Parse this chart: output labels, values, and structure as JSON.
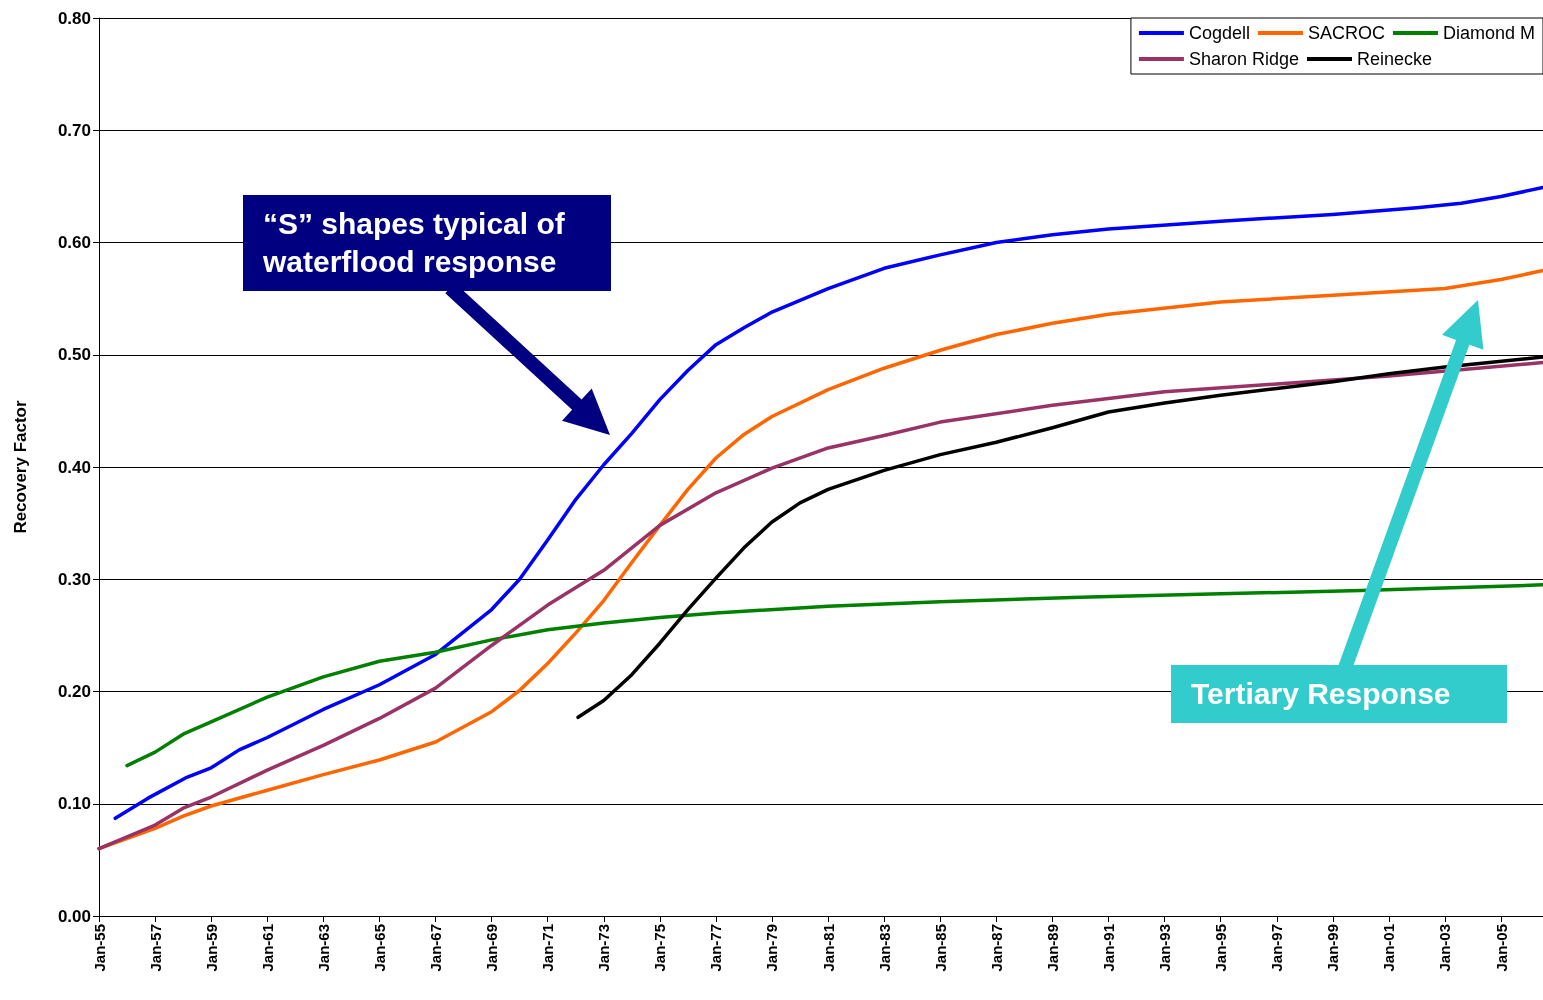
{
  "chart_data": {
    "type": "line",
    "ylabel": "Recovery Factor",
    "xlim": [
      "1955-01",
      "2006-07"
    ],
    "ylim": [
      0,
      0.8
    ],
    "xticks": [
      {
        "value": "1955-01",
        "label": "Jan-55"
      },
      {
        "value": "1957-01",
        "label": "Jan-57"
      },
      {
        "value": "1959-01",
        "label": "Jan-59"
      },
      {
        "value": "1961-01",
        "label": "Jan-61"
      },
      {
        "value": "1963-01",
        "label": "Jan-63"
      },
      {
        "value": "1965-01",
        "label": "Jan-65"
      },
      {
        "value": "1967-01",
        "label": "Jan-67"
      },
      {
        "value": "1969-01",
        "label": "Jan-69"
      },
      {
        "value": "1971-01",
        "label": "Jan-71"
      },
      {
        "value": "1973-01",
        "label": "Jan-73"
      },
      {
        "value": "1975-01",
        "label": "Jan-75"
      },
      {
        "value": "1977-01",
        "label": "Jan-77"
      },
      {
        "value": "1979-01",
        "label": "Jan-79"
      },
      {
        "value": "1981-01",
        "label": "Jan-81"
      },
      {
        "value": "1983-01",
        "label": "Jan-83"
      },
      {
        "value": "1985-01",
        "label": "Jan-85"
      },
      {
        "value": "1987-01",
        "label": "Jan-87"
      },
      {
        "value": "1989-01",
        "label": "Jan-89"
      },
      {
        "value": "1991-01",
        "label": "Jan-91"
      },
      {
        "value": "1993-01",
        "label": "Jan-93"
      },
      {
        "value": "1995-01",
        "label": "Jan-95"
      },
      {
        "value": "1997-01",
        "label": "Jan-97"
      },
      {
        "value": "1999-01",
        "label": "Jan-99"
      },
      {
        "value": "2001-01",
        "label": "Jan-01"
      },
      {
        "value": "2003-01",
        "label": "Jan-03"
      },
      {
        "value": "2005-01",
        "label": "Jan-05"
      }
    ],
    "yticks": [
      {
        "value": 0,
        "label": "0.00"
      },
      {
        "value": 0.1,
        "label": "0.10"
      },
      {
        "value": 0.2,
        "label": "0.20"
      },
      {
        "value": 0.3,
        "label": "0.30"
      },
      {
        "value": 0.4,
        "label": "0.40"
      },
      {
        "value": 0.5,
        "label": "0.50"
      },
      {
        "value": 0.6,
        "label": "0.60"
      },
      {
        "value": 0.7,
        "label": "0.70"
      },
      {
        "value": 0.8,
        "label": "0.80"
      }
    ],
    "grid": "y",
    "legend": "top right",
    "marker": "none",
    "line_style": "solid",
    "series": [
      {
        "name": "Cogdell",
        "color": "#0000ff",
        "x": [
          "1955-08",
          "1956-10",
          "1958-02",
          "1959-01",
          "1960-01",
          "1961-01",
          "1963-01",
          "1965-01",
          "1967-01",
          "1969-01",
          "1970-01",
          "1971-01",
          "1972-01",
          "1973-01",
          "1974-01",
          "1975-01",
          "1976-01",
          "1977-01",
          "1978-01",
          "1979-01",
          "1981-01",
          "1983-01",
          "1985-01",
          "1987-01",
          "1989-01",
          "1991-01",
          "1995-01",
          "1999-01",
          "2002-01",
          "2003-08",
          "2005-01",
          "2006-07"
        ],
        "values": [
          0.087,
          0.105,
          0.123,
          0.132,
          0.148,
          0.159,
          0.184,
          0.206,
          0.233,
          0.273,
          0.3,
          0.335,
          0.371,
          0.402,
          0.43,
          0.46,
          0.486,
          0.509,
          0.524,
          0.538,
          0.559,
          0.577,
          0.589,
          0.6,
          0.607,
          0.612,
          0.619,
          0.625,
          0.631,
          0.635,
          0.641,
          0.649
        ]
      },
      {
        "name": "SACROC",
        "color": "#ff6600",
        "x": [
          "1955-01",
          "1957-01",
          "1958-01",
          "1959-01",
          "1961-01",
          "1963-01",
          "1965-01",
          "1967-01",
          "1969-01",
          "1970-01",
          "1971-01",
          "1972-01",
          "1973-01",
          "1974-01",
          "1975-01",
          "1976-01",
          "1977-01",
          "1978-01",
          "1979-01",
          "1981-01",
          "1983-01",
          "1985-01",
          "1987-01",
          "1989-01",
          "1991-01",
          "1995-01",
          "1999-01",
          "2003-01",
          "2005-01",
          "2006-07"
        ],
        "values": [
          0.06,
          0.078,
          0.089,
          0.098,
          0.112,
          0.126,
          0.139,
          0.155,
          0.182,
          0.201,
          0.225,
          0.252,
          0.281,
          0.315,
          0.348,
          0.38,
          0.408,
          0.429,
          0.445,
          0.469,
          0.488,
          0.504,
          0.518,
          0.528,
          0.536,
          0.547,
          0.553,
          0.559,
          0.567,
          0.575
        ]
      },
      {
        "name": "Diamond M",
        "color": "#008000",
        "x": [
          "1956-01",
          "1957-01",
          "1958-01",
          "1959-01",
          "1961-01",
          "1963-01",
          "1965-01",
          "1967-01",
          "1969-01",
          "1971-01",
          "1973-01",
          "1975-01",
          "1977-01",
          "1981-01",
          "1985-01",
          "1990-01",
          "1995-01",
          "2000-01",
          "2006-07"
        ],
        "values": [
          0.134,
          0.146,
          0.162,
          0.173,
          0.195,
          0.213,
          0.227,
          0.235,
          0.246,
          0.255,
          0.261,
          0.266,
          0.27,
          0.276,
          0.28,
          0.284,
          0.287,
          0.29,
          0.295
        ]
      },
      {
        "name": "Sharon Ridge",
        "color": "#993366",
        "x": [
          "1955-01",
          "1957-01",
          "1958-01",
          "1959-01",
          "1961-01",
          "1963-01",
          "1965-01",
          "1967-01",
          "1969-01",
          "1971-01",
          "1973-01",
          "1975-01",
          "1977-01",
          "1979-01",
          "1981-01",
          "1983-01",
          "1985-01",
          "1989-01",
          "1993-01",
          "1997-01",
          "2001-01",
          "2006-07"
        ],
        "values": [
          0.06,
          0.081,
          0.096,
          0.106,
          0.13,
          0.152,
          0.176,
          0.203,
          0.241,
          0.277,
          0.308,
          0.348,
          0.377,
          0.399,
          0.417,
          0.428,
          0.44,
          0.455,
          0.467,
          0.474,
          0.481,
          0.493
        ]
      },
      {
        "name": "Reinecke",
        "color": "#000000",
        "x": [
          "1972-02",
          "1973-01",
          "1974-01",
          "1975-01",
          "1976-01",
          "1977-01",
          "1978-01",
          "1979-01",
          "1980-01",
          "1981-01",
          "1983-01",
          "1985-01",
          "1987-01",
          "1989-01",
          "1991-01",
          "1993-01",
          "1995-01",
          "1997-01",
          "1999-01",
          "2001-01",
          "2003-01",
          "2006-07"
        ],
        "values": [
          0.177,
          0.192,
          0.215,
          0.243,
          0.273,
          0.301,
          0.328,
          0.351,
          0.368,
          0.38,
          0.397,
          0.411,
          0.422,
          0.435,
          0.449,
          0.457,
          0.464,
          0.47,
          0.476,
          0.483,
          0.489,
          0.498
        ]
      }
    ],
    "annotations": [
      "“S” shapes typical of waterflood response",
      "Tertiary Response"
    ]
  }
}
